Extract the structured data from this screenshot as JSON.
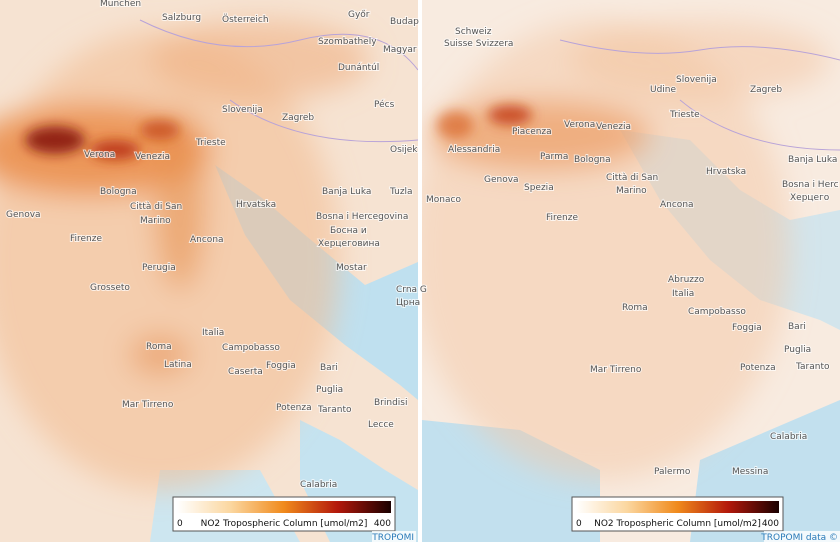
{
  "panels": [
    {
      "labels": [
        "München",
        "Salzburg",
        "Österreich",
        "Győr",
        "Budap",
        "Szombathely",
        "Magyar",
        "Dunántúl",
        "Slovenija",
        "Zagreb",
        "Pécs",
        "Osijek",
        "Trieste",
        "Verona",
        "Venezia",
        "Bologna",
        "Genova",
        "Città di San",
        "Marino",
        "Firenze",
        "Ancona",
        "Hrvatska",
        "Banja Luka",
        "Tuzla",
        "Bosna i Hercegovina",
        "Босна и",
        "Херцеговина",
        "Mostar",
        "Crna G",
        "Црна",
        "Perugia",
        "Grosseto",
        "Roma",
        "Latina",
        "Italia",
        "Campobasso",
        "Foggia",
        "Bari",
        "Puglia",
        "Caserta",
        "Taranto",
        "Brindisi",
        "Potenza",
        "Lecce",
        "Mar Tirreno",
        "Calabria"
      ],
      "colorbar": {
        "min": 0,
        "max": 400,
        "label": "NO2 Tropospheric Column [umol/m2]"
      },
      "attribution": "TROPOMI"
    },
    {
      "labels": [
        "Schweiz",
        "Suisse Svizzera",
        "Slovenija",
        "Zagreb",
        "Udine",
        "Trieste",
        "Venezia",
        "Verona",
        "Piacenza",
        "Alessandria",
        "Parma",
        "Bologna",
        "Genova",
        "Spezia",
        "Città di San",
        "Marino",
        "Hrvatska",
        "Banja Luka",
        "Bosna i Herc",
        "Херцего",
        "Monaco",
        "Firenze",
        "Ancona",
        "Abruzzo",
        "Italia",
        "Roma",
        "Campobasso",
        "Foggia",
        "Bari",
        "Puglia",
        "Potenza",
        "Taranto",
        "Mar Tirreno",
        "Calabria",
        "Palermo",
        "Messina"
      ],
      "colorbar": {
        "min": 0,
        "max": 400,
        "label": "NO2 Tropospheric Column [umol/m2]"
      },
      "attribution": "TROPOMI data ©"
    }
  ]
}
